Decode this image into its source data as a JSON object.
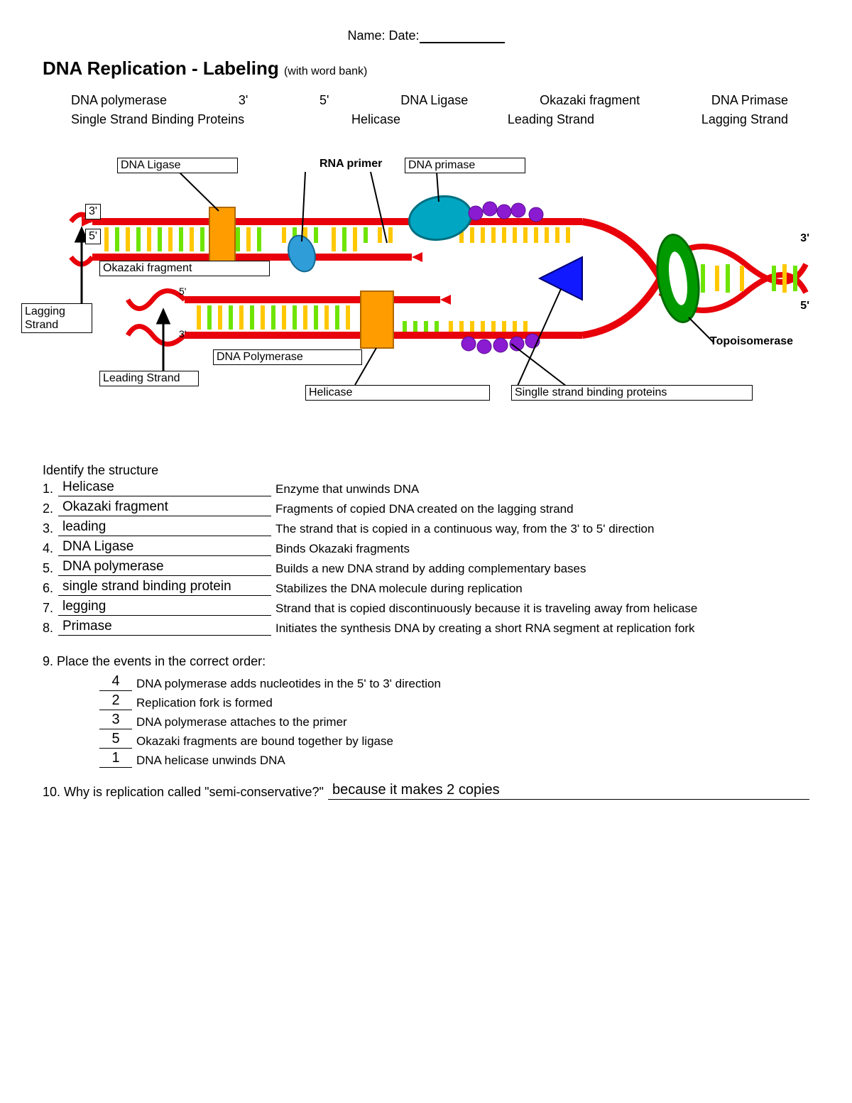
{
  "header": {
    "name_label": "Name:",
    "date_label": "Date:"
  },
  "title": {
    "main": "DNA Replication - Labeling",
    "sub": "(with word bank)"
  },
  "wordbank": {
    "row1": [
      "DNA polymerase",
      "3'",
      "5'",
      "DNA Ligase",
      "Okazaki fragment",
      "DNA Primase"
    ],
    "row2": [
      "Single Strand Binding Proteins",
      "Helicase",
      "Leading Strand",
      "Lagging Strand"
    ]
  },
  "diagram": {
    "colors": {
      "strand_red": "#e8000a",
      "base_green": "#6ee400",
      "base_yellow": "#ffc800",
      "polymerase_orange": "#ff9d00",
      "primase_oval": "#00a6c2",
      "topoisomerase_green": "#009a00",
      "helicase_blue": "#1019ff",
      "ssb_purple": "#8a1bd1",
      "ligase_blue": "#2f9dd8"
    },
    "labels": {
      "dna_ligase_box": "DNA Ligase",
      "rna_primer": "RNA primer",
      "dna_primase_box": "DNA primase",
      "three_prime_top": "3'",
      "five_prime_top": "5'",
      "three_prime_right": "3'",
      "five_prime_right": "5'",
      "five_small": "5'",
      "three_small": "3'",
      "okazaki_box": "Okazaki fragment",
      "lagging_box": "Lagging\nStrand",
      "leading_box": "Leading Strand",
      "dna_polymerase_box": "DNA Polymerase",
      "helicase_box": "Helicase",
      "ssb_box": "Singlle strand binding proteins",
      "topoisomerase": "Topoisomerase"
    }
  },
  "identify": {
    "heading": "Identify the structure",
    "items": [
      {
        "n": "1.",
        "ans": "Helicase",
        "desc": "Enzyme that unwinds DNA"
      },
      {
        "n": "2.",
        "ans": "Okazaki fragment",
        "desc": "Fragments of copied DNA created on the lagging strand"
      },
      {
        "n": "3.",
        "ans": "leading",
        "desc": "The strand that is copied in a continuous way, from the 3' to 5' direction"
      },
      {
        "n": "4.",
        "ans": "DNA Ligase",
        "desc": "Binds Okazaki fragments"
      },
      {
        "n": "5.",
        "ans": "DNA polymerase",
        "desc": "Builds a new DNA strand by adding complementary bases"
      },
      {
        "n": "6.",
        "ans": "single strand binding protein",
        "desc": "Stabilizes the DNA molecule during replication"
      },
      {
        "n": "7.",
        "ans": "legging",
        "desc": "Strand that is copied discontinuously because it is traveling away from helicase"
      },
      {
        "n": "8.",
        "ans": "Primase",
        "desc": "Initiates the synthesis DNA by creating a short RNA segment at replication fork"
      }
    ]
  },
  "order": {
    "prompt": "9.  Place the events in the correct order:",
    "items": [
      {
        "ans": "4",
        "desc": "DNA polymerase adds nucleotides in the 5' to 3' direction"
      },
      {
        "ans": "2",
        "desc": "Replication fork is formed"
      },
      {
        "ans": "3",
        "desc": "DNA polymerase attaches to the primer"
      },
      {
        "ans": "5",
        "desc": "Okazaki fragments are bound together by ligase"
      },
      {
        "ans": "1",
        "desc": "DNA helicase unwinds DNA"
      }
    ]
  },
  "q10": {
    "prompt": "10.  Why is replication called \"semi-conservative?\"",
    "ans": "because it makes 2 copies"
  }
}
